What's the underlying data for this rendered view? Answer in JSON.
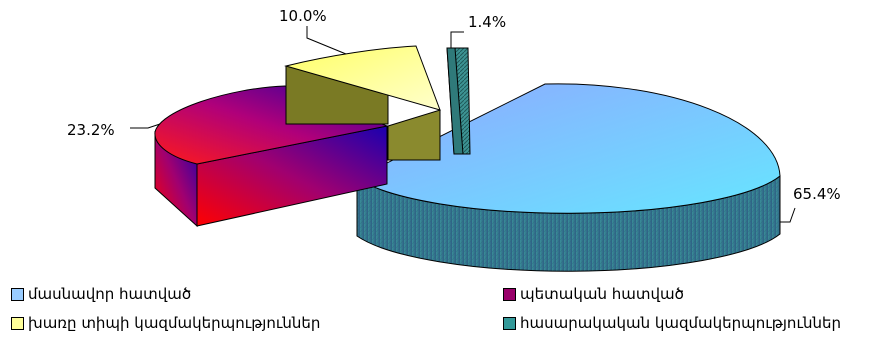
{
  "chart_data": {
    "type": "pie",
    "title": "",
    "categories": [
      "մասնավոր հատված",
      "պետական հատված",
      "խառը տիպի կազմակերպություններ",
      "հասարակական կազմակերպություններ"
    ],
    "values": [
      65.4,
      23.2,
      10.0,
      1.4
    ],
    "data_labels": [
      "65.4%",
      "23.2%",
      "10.0%",
      "1.4%"
    ],
    "colors": [
      "#99ccff",
      "#99006a",
      "#ffff99",
      "#339999"
    ],
    "legend_position": "bottom",
    "style": "3d-exploded"
  }
}
